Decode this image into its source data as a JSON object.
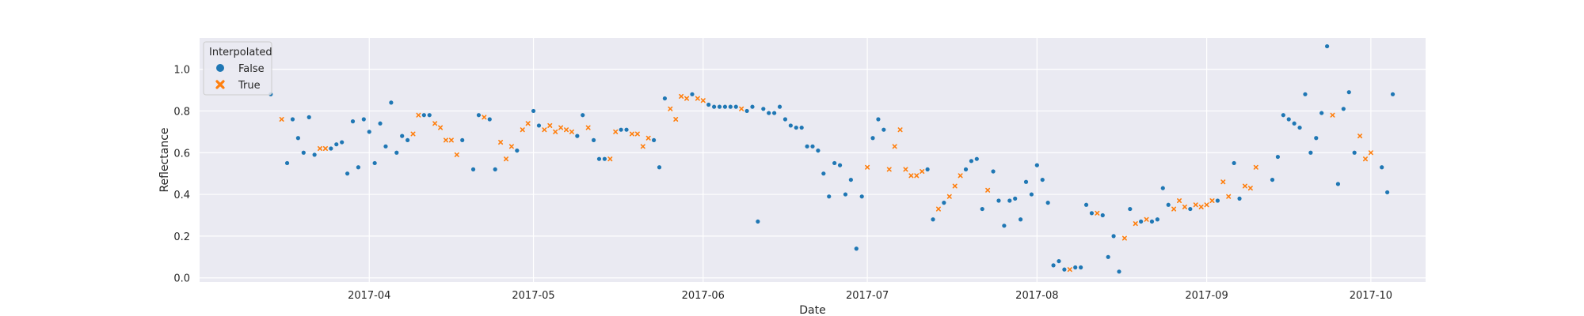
{
  "chart_data": {
    "type": "scatter",
    "title": "",
    "xlabel": "Date",
    "ylabel": "Reflectance",
    "xlim": [
      "2017-03-01",
      "2017-10-11"
    ],
    "ylim": [
      -0.02,
      1.15
    ],
    "grid": true,
    "legend": {
      "title": "Interpolated",
      "placement": "top-left",
      "entries": [
        {
          "label": "False",
          "marker": "circle",
          "color": "#1f77b4"
        },
        {
          "label": "True",
          "marker": "x",
          "color": "#ff7f0e"
        }
      ]
    },
    "x_ticks": [
      "2017-04-01",
      "2017-05-01",
      "2017-06-01",
      "2017-07-01",
      "2017-08-01",
      "2017-09-01",
      "2017-10-01"
    ],
    "x_tick_labels": [
      "2017-04",
      "2017-05",
      "2017-06",
      "2017-07",
      "2017-08",
      "2017-09",
      "2017-10"
    ],
    "y_ticks": [
      0.0,
      0.2,
      0.4,
      0.6,
      0.8,
      1.0
    ],
    "y_tick_labels": [
      "0.0",
      "0.2",
      "0.4",
      "0.6",
      "0.8",
      "1.0"
    ],
    "series": [
      {
        "name": "False",
        "color": "#1f77b4",
        "marker": "circle",
        "points": [
          [
            "2017-03-14",
            0.88
          ],
          [
            "2017-03-17",
            0.55
          ],
          [
            "2017-03-18",
            0.76
          ],
          [
            "2017-03-19",
            0.67
          ],
          [
            "2017-03-20",
            0.6
          ],
          [
            "2017-03-21",
            0.77
          ],
          [
            "2017-03-22",
            0.59
          ],
          [
            "2017-03-25",
            0.62
          ],
          [
            "2017-03-26",
            0.64
          ],
          [
            "2017-03-27",
            0.65
          ],
          [
            "2017-03-28",
            0.5
          ],
          [
            "2017-03-29",
            0.75
          ],
          [
            "2017-03-30",
            0.53
          ],
          [
            "2017-03-31",
            0.76
          ],
          [
            "2017-04-01",
            0.7
          ],
          [
            "2017-04-02",
            0.55
          ],
          [
            "2017-04-03",
            0.74
          ],
          [
            "2017-04-04",
            0.63
          ],
          [
            "2017-04-05",
            0.84
          ],
          [
            "2017-04-06",
            0.6
          ],
          [
            "2017-04-07",
            0.68
          ],
          [
            "2017-04-08",
            0.66
          ],
          [
            "2017-04-11",
            0.78
          ],
          [
            "2017-04-12",
            0.78
          ],
          [
            "2017-04-18",
            0.66
          ],
          [
            "2017-04-20",
            0.52
          ],
          [
            "2017-04-21",
            0.78
          ],
          [
            "2017-04-23",
            0.76
          ],
          [
            "2017-04-24",
            0.52
          ],
          [
            "2017-04-28",
            0.61
          ],
          [
            "2017-05-01",
            0.8
          ],
          [
            "2017-05-02",
            0.73
          ],
          [
            "2017-05-09",
            0.68
          ],
          [
            "2017-05-10",
            0.78
          ],
          [
            "2017-05-12",
            0.66
          ],
          [
            "2017-05-13",
            0.57
          ],
          [
            "2017-05-14",
            0.57
          ],
          [
            "2017-05-17",
            0.71
          ],
          [
            "2017-05-18",
            0.71
          ],
          [
            "2017-05-23",
            0.66
          ],
          [
            "2017-05-24",
            0.53
          ],
          [
            "2017-05-25",
            0.86
          ],
          [
            "2017-05-30",
            0.88
          ],
          [
            "2017-06-02",
            0.83
          ],
          [
            "2017-06-03",
            0.82
          ],
          [
            "2017-06-04",
            0.82
          ],
          [
            "2017-06-05",
            0.82
          ],
          [
            "2017-06-06",
            0.82
          ],
          [
            "2017-06-07",
            0.82
          ],
          [
            "2017-06-09",
            0.8
          ],
          [
            "2017-06-10",
            0.82
          ],
          [
            "2017-06-11",
            0.27
          ],
          [
            "2017-06-12",
            0.81
          ],
          [
            "2017-06-13",
            0.79
          ],
          [
            "2017-06-14",
            0.79
          ],
          [
            "2017-06-15",
            0.82
          ],
          [
            "2017-06-16",
            0.76
          ],
          [
            "2017-06-17",
            0.73
          ],
          [
            "2017-06-18",
            0.72
          ],
          [
            "2017-06-19",
            0.72
          ],
          [
            "2017-06-20",
            0.63
          ],
          [
            "2017-06-21",
            0.63
          ],
          [
            "2017-06-22",
            0.61
          ],
          [
            "2017-06-23",
            0.5
          ],
          [
            "2017-06-24",
            0.39
          ],
          [
            "2017-06-25",
            0.55
          ],
          [
            "2017-06-26",
            0.54
          ],
          [
            "2017-06-27",
            0.4
          ],
          [
            "2017-06-28",
            0.47
          ],
          [
            "2017-06-29",
            0.14
          ],
          [
            "2017-06-30",
            0.39
          ],
          [
            "2017-07-02",
            0.67
          ],
          [
            "2017-07-03",
            0.76
          ],
          [
            "2017-07-04",
            0.71
          ],
          [
            "2017-07-12",
            0.52
          ],
          [
            "2017-07-13",
            0.28
          ],
          [
            "2017-07-15",
            0.36
          ],
          [
            "2017-07-19",
            0.52
          ],
          [
            "2017-07-20",
            0.56
          ],
          [
            "2017-07-21",
            0.57
          ],
          [
            "2017-07-22",
            0.33
          ],
          [
            "2017-07-24",
            0.51
          ],
          [
            "2017-07-25",
            0.37
          ],
          [
            "2017-07-26",
            0.25
          ],
          [
            "2017-07-27",
            0.37
          ],
          [
            "2017-07-28",
            0.38
          ],
          [
            "2017-07-29",
            0.28
          ],
          [
            "2017-07-30",
            0.46
          ],
          [
            "2017-07-31",
            0.4
          ],
          [
            "2017-08-01",
            0.54
          ],
          [
            "2017-08-02",
            0.47
          ],
          [
            "2017-08-03",
            0.36
          ],
          [
            "2017-08-04",
            0.06
          ],
          [
            "2017-08-05",
            0.08
          ],
          [
            "2017-08-06",
            0.04
          ],
          [
            "2017-08-08",
            0.05
          ],
          [
            "2017-08-09",
            0.05
          ],
          [
            "2017-08-10",
            0.35
          ],
          [
            "2017-08-11",
            0.31
          ],
          [
            "2017-08-13",
            0.3
          ],
          [
            "2017-08-14",
            0.1
          ],
          [
            "2017-08-15",
            0.2
          ],
          [
            "2017-08-16",
            0.03
          ],
          [
            "2017-08-18",
            0.33
          ],
          [
            "2017-08-20",
            0.27
          ],
          [
            "2017-08-22",
            0.27
          ],
          [
            "2017-08-23",
            0.28
          ],
          [
            "2017-08-24",
            0.43
          ],
          [
            "2017-08-25",
            0.35
          ],
          [
            "2017-08-29",
            0.33
          ],
          [
            "2017-09-03",
            0.37
          ],
          [
            "2017-09-06",
            0.55
          ],
          [
            "2017-09-07",
            0.38
          ],
          [
            "2017-09-13",
            0.47
          ],
          [
            "2017-09-14",
            0.58
          ],
          [
            "2017-09-15",
            0.78
          ],
          [
            "2017-09-16",
            0.76
          ],
          [
            "2017-09-17",
            0.74
          ],
          [
            "2017-09-18",
            0.72
          ],
          [
            "2017-09-19",
            0.88
          ],
          [
            "2017-09-20",
            0.6
          ],
          [
            "2017-09-21",
            0.67
          ],
          [
            "2017-09-22",
            0.79
          ],
          [
            "2017-09-23",
            1.11
          ],
          [
            "2017-09-25",
            0.45
          ],
          [
            "2017-09-26",
            0.81
          ],
          [
            "2017-09-27",
            0.89
          ],
          [
            "2017-09-28",
            0.6
          ],
          [
            "2017-10-03",
            0.53
          ],
          [
            "2017-10-04",
            0.41
          ],
          [
            "2017-10-05",
            0.88
          ]
        ]
      },
      {
        "name": "True",
        "color": "#ff7f0e",
        "marker": "x",
        "points": [
          [
            "2017-03-16",
            0.76
          ],
          [
            "2017-03-23",
            0.62
          ],
          [
            "2017-03-24",
            0.62
          ],
          [
            "2017-04-09",
            0.69
          ],
          [
            "2017-04-10",
            0.78
          ],
          [
            "2017-04-13",
            0.74
          ],
          [
            "2017-04-14",
            0.72
          ],
          [
            "2017-04-15",
            0.66
          ],
          [
            "2017-04-16",
            0.66
          ],
          [
            "2017-04-17",
            0.59
          ],
          [
            "2017-04-22",
            0.77
          ],
          [
            "2017-04-25",
            0.65
          ],
          [
            "2017-04-26",
            0.57
          ],
          [
            "2017-04-27",
            0.63
          ],
          [
            "2017-04-29",
            0.71
          ],
          [
            "2017-04-30",
            0.74
          ],
          [
            "2017-05-03",
            0.71
          ],
          [
            "2017-05-04",
            0.73
          ],
          [
            "2017-05-05",
            0.7
          ],
          [
            "2017-05-06",
            0.72
          ],
          [
            "2017-05-07",
            0.71
          ],
          [
            "2017-05-08",
            0.7
          ],
          [
            "2017-05-11",
            0.72
          ],
          [
            "2017-05-15",
            0.57
          ],
          [
            "2017-05-16",
            0.7
          ],
          [
            "2017-05-19",
            0.69
          ],
          [
            "2017-05-20",
            0.69
          ],
          [
            "2017-05-21",
            0.63
          ],
          [
            "2017-05-22",
            0.67
          ],
          [
            "2017-05-26",
            0.81
          ],
          [
            "2017-05-27",
            0.76
          ],
          [
            "2017-05-28",
            0.87
          ],
          [
            "2017-05-29",
            0.86
          ],
          [
            "2017-05-31",
            0.86
          ],
          [
            "2017-06-01",
            0.85
          ],
          [
            "2017-06-08",
            0.81
          ],
          [
            "2017-07-01",
            0.53
          ],
          [
            "2017-07-05",
            0.52
          ],
          [
            "2017-07-06",
            0.63
          ],
          [
            "2017-07-07",
            0.71
          ],
          [
            "2017-07-08",
            0.52
          ],
          [
            "2017-07-09",
            0.49
          ],
          [
            "2017-07-10",
            0.49
          ],
          [
            "2017-07-11",
            0.51
          ],
          [
            "2017-07-14",
            0.33
          ],
          [
            "2017-07-16",
            0.39
          ],
          [
            "2017-07-17",
            0.44
          ],
          [
            "2017-07-18",
            0.49
          ],
          [
            "2017-07-23",
            0.42
          ],
          [
            "2017-08-07",
            0.04
          ],
          [
            "2017-08-12",
            0.31
          ],
          [
            "2017-08-17",
            0.19
          ],
          [
            "2017-08-19",
            0.26
          ],
          [
            "2017-08-21",
            0.28
          ],
          [
            "2017-08-26",
            0.33
          ],
          [
            "2017-08-27",
            0.37
          ],
          [
            "2017-08-28",
            0.34
          ],
          [
            "2017-08-30",
            0.35
          ],
          [
            "2017-08-31",
            0.34
          ],
          [
            "2017-09-01",
            0.35
          ],
          [
            "2017-09-02",
            0.37
          ],
          [
            "2017-09-04",
            0.46
          ],
          [
            "2017-09-05",
            0.39
          ],
          [
            "2017-09-08",
            0.44
          ],
          [
            "2017-09-09",
            0.43
          ],
          [
            "2017-09-10",
            0.53
          ],
          [
            "2017-09-24",
            0.78
          ],
          [
            "2017-09-29",
            0.68
          ],
          [
            "2017-09-30",
            0.57
          ],
          [
            "2017-10-01",
            0.6
          ]
        ]
      }
    ]
  }
}
